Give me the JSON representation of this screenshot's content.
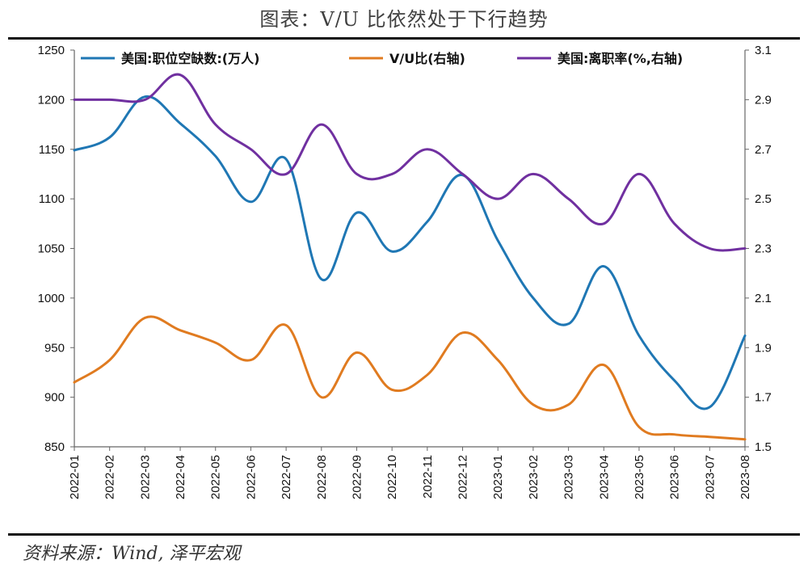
{
  "header": {
    "title": "图表：V/U 比依然处于下行趋势"
  },
  "footer": {
    "source": "资料来源：Wind, 泽平宏观"
  },
  "chart_data": {
    "type": "line",
    "title": "图表：V/U 比依然处于下行趋势",
    "categories": [
      "2022-01",
      "2022-02",
      "2022-03",
      "2022-04",
      "2022-05",
      "2022-06",
      "2022-07",
      "2022-08",
      "2022-09",
      "2022-10",
      "2022-11",
      "2022-12",
      "2023-01",
      "2023-02",
      "2023-03",
      "2023-04",
      "2023-05",
      "2023-06",
      "2023-07",
      "2023-08"
    ],
    "left_axis": {
      "ylim": [
        850,
        1250
      ],
      "ticks": [
        850,
        900,
        950,
        1000,
        1050,
        1100,
        1150,
        1200,
        1250
      ]
    },
    "right_axis": {
      "ylim": [
        1.5,
        3.1
      ],
      "ticks": [
        "1.5",
        "1.7",
        "1.9",
        "2.1",
        "2.3",
        "2.5",
        "2.7",
        "2.9",
        "3.1"
      ]
    },
    "grid": false,
    "legend_position": "top",
    "series": [
      {
        "name": "美国:职位空缺数:(万人)",
        "axis": "left",
        "color": "#1f77b4",
        "values": [
          1149,
          1162,
          1203,
          1176,
          1143,
          1097,
          1140,
          1019,
          1086,
          1047,
          1077,
          1124,
          1058,
          1000,
          974,
          1032,
          962,
          917,
          890,
          962
        ]
      },
      {
        "name": "V/U比(右轴)",
        "axis": "right",
        "color": "#e07b20",
        "values": [
          1.76,
          1.85,
          2.02,
          1.97,
          1.92,
          1.85,
          1.99,
          1.7,
          1.88,
          1.73,
          1.79,
          1.96,
          1.85,
          1.67,
          1.67,
          1.83,
          1.58,
          1.55,
          1.54,
          1.53
        ]
      },
      {
        "name": "美国:离职率(%,右轴)",
        "axis": "right",
        "color": "#7030a0",
        "values": [
          2.9,
          2.9,
          2.9,
          3.0,
          2.8,
          2.7,
          2.6,
          2.8,
          2.6,
          2.6,
          2.7,
          2.6,
          2.5,
          2.6,
          2.5,
          2.4,
          2.6,
          2.4,
          2.3,
          2.3
        ]
      }
    ]
  }
}
